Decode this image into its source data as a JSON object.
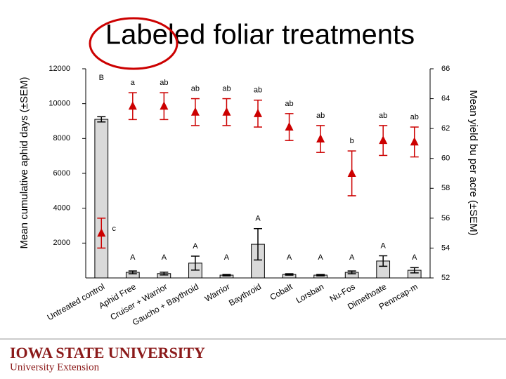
{
  "chart_data": {
    "type": "bar",
    "title": "Labeled foliar treatments",
    "ylabel": "Mean cumulative aphid days (±SEM)",
    "y2label": "Mean yield bu per acre (±SEM)",
    "categories": [
      "Untreated control",
      "Aphid Free",
      "Cruiser + Warrior",
      "Gaucho + Baythroid",
      "Warrior",
      "Baythroid",
      "Cobalt",
      "Lorsban",
      "Nu-Fos",
      "Dimethoate",
      "Penncap-m"
    ],
    "ylim": [
      0,
      12000
    ],
    "yticks": [
      2000,
      4000,
      6000,
      8000,
      10000,
      12000
    ],
    "y2lim": [
      52,
      66
    ],
    "y2ticks": [
      52,
      54,
      56,
      58,
      60,
      62,
      64,
      66
    ],
    "series": [
      {
        "color": "#d9d9d9",
        "values": [
          9100,
          320,
          250,
          850,
          160,
          1930,
          200,
          160,
          320,
          970,
          440
        ],
        "errors": [
          150,
          80,
          80,
          400,
          40,
          900,
          40,
          40,
          80,
          300,
          150
        ],
        "letters": [
          "B",
          "A",
          "A",
          "A",
          "A",
          "A",
          "A",
          "A",
          "A",
          "A",
          "A"
        ]
      },
      {
        "color": "#cc0000",
        "axis": "y2",
        "values": [
          55.0,
          63.5,
          63.5,
          63.1,
          63.1,
          63.0,
          62.1,
          61.3,
          59.0,
          61.2,
          61.1
        ],
        "errors": [
          1.0,
          0.9,
          0.9,
          0.9,
          0.9,
          0.9,
          0.9,
          0.9,
          1.5,
          1.0,
          1.0
        ],
        "letters": [
          "c",
          "a",
          "ab",
          "ab",
          "ab",
          "ab",
          "ab",
          "ab",
          "b",
          "ab",
          "ab"
        ]
      }
    ]
  },
  "footer": {
    "university": "IOWA STATE UNIVERSITY",
    "unit": "University Extension"
  }
}
